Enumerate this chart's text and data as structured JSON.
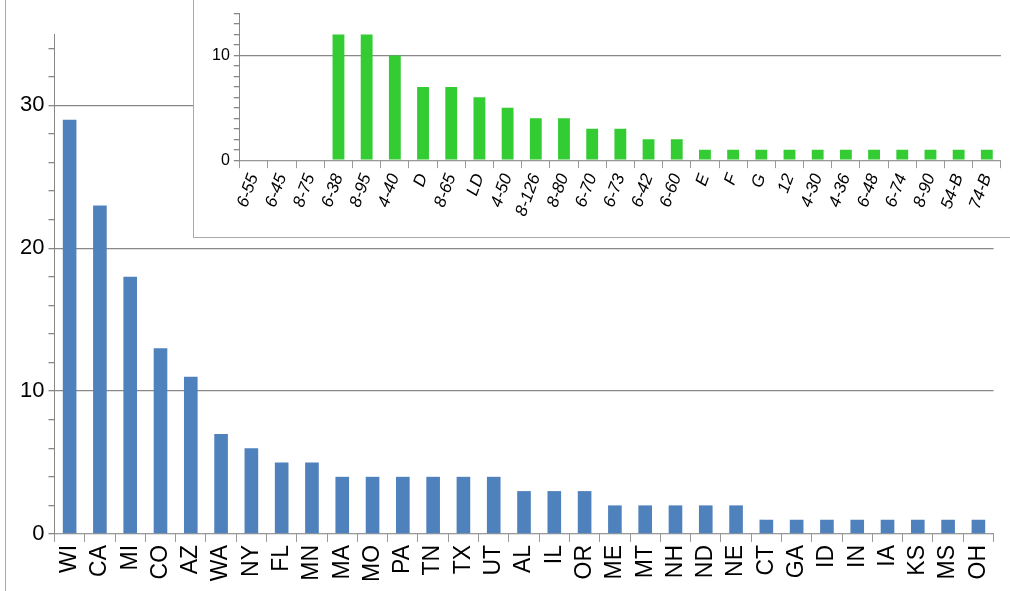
{
  "chart_data": [
    {
      "type": "bar",
      "categories": [
        "WI",
        "CA",
        "MI",
        "CO",
        "AZ",
        "WA",
        "NY",
        "FL",
        "MN",
        "MA",
        "MO",
        "PA",
        "TN",
        "TX",
        "UT",
        "AL",
        "IL",
        "OR",
        "ME",
        "MT",
        "NH",
        "ND",
        "NE",
        "CT",
        "GA",
        "ID",
        "IN",
        "IA",
        "KS",
        "MS",
        "OH"
      ],
      "series": [
        {
          "color": "#4f81bd",
          "values": [
            29,
            23,
            18,
            13,
            11,
            7,
            6,
            5,
            5,
            4,
            4,
            4,
            4,
            4,
            4,
            3,
            3,
            3,
            2,
            2,
            2,
            2,
            2,
            1,
            1,
            1,
            1,
            1,
            1,
            1,
            1
          ]
        }
      ],
      "ylim": [
        0,
        35
      ],
      "yticks": [
        0,
        {
          "value": 2,
          "label": null
        },
        {
          "value": 4,
          "label": null
        },
        {
          "value": 6,
          "label": null
        },
        {
          "value": 8,
          "label": null
        },
        10,
        {
          "value": 12,
          "label": null
        },
        {
          "value": 14,
          "label": null
        },
        {
          "value": 16,
          "label": null
        },
        {
          "value": 18,
          "label": null
        },
        20,
        {
          "value": 22,
          "label": null
        },
        {
          "value": 24,
          "label": null
        },
        {
          "value": 26,
          "label": null
        },
        {
          "value": 28,
          "label": null
        },
        30,
        {
          "value": 32,
          "label": null
        },
        {
          "value": 34,
          "label": null
        }
      ],
      "grid": "y"
    },
    {
      "type": "bar",
      "categories": [
        "6-55",
        "6-45",
        "8-75",
        "6-38",
        "8-95",
        "4-40",
        "D",
        "8-65",
        "LD",
        "4-50",
        "8-126",
        "8-80",
        "6-70",
        "6-73",
        "6-42",
        "6-60",
        "E",
        "F",
        "G",
        "12",
        "4-30",
        "4-36",
        "6-48",
        "6-74",
        "8-90",
        "54-B",
        "74-B"
      ],
      "series": [
        {
          "color": "#33cc33",
          "values": [
            null,
            null,
            null,
            12,
            12,
            10,
            7,
            7,
            6,
            5,
            4,
            4,
            3,
            3,
            2,
            2,
            1,
            1,
            1,
            1,
            1,
            1,
            1,
            1,
            1,
            1,
            1
          ]
        }
      ],
      "ylim": [
        0,
        14
      ],
      "yticks": [
        0,
        {
          "value": 1,
          "label": null
        },
        {
          "value": 2,
          "label": null
        },
        {
          "value": 3,
          "label": null
        },
        {
          "value": 4,
          "label": null
        },
        {
          "value": 5,
          "label": null
        },
        {
          "value": 6,
          "label": null
        },
        {
          "value": 7,
          "label": null
        },
        {
          "value": 8,
          "label": null
        },
        {
          "value": 9,
          "label": null
        },
        10,
        {
          "value": 11,
          "label": null
        },
        {
          "value": 12,
          "label": null
        },
        {
          "value": 13,
          "label": null
        },
        {
          "value": 14,
          "label": null
        }
      ],
      "grid": "y"
    }
  ]
}
